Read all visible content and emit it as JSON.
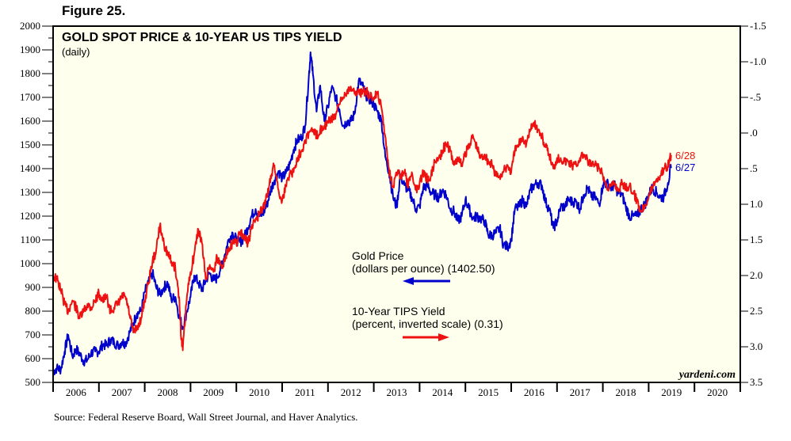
{
  "figure_label": "Figure 25.",
  "source_note": "Source: Federal Reserve Board, Wall Street Journal, and Haver Analytics.",
  "watermark": "yardeni.com",
  "colors": {
    "gold": "#0000cc",
    "tips": "#ee1111",
    "plot_bg": "#ffffee",
    "frame": "#000000"
  },
  "chart_data": {
    "type": "line",
    "title": "GOLD SPOT PRICE & 10-YEAR US TIPS YIELD",
    "subtitle": "(daily)",
    "xlabel": "",
    "x_tick_labels": [
      "2006",
      "2007",
      "2008",
      "2009",
      "2010",
      "2011",
      "2012",
      "2013",
      "2014",
      "2015",
      "2016",
      "2017",
      "2018",
      "2019",
      "2020"
    ],
    "xlim": [
      2006.0,
      2021.0
    ],
    "left_axis": {
      "label": "Gold Price (dollars per ounce)",
      "ylim": [
        500,
        2000
      ],
      "tick_labels": [
        "500",
        "600",
        "700",
        "800",
        "900",
        "1000",
        "1100",
        "1200",
        "1300",
        "1400",
        "1500",
        "1600",
        "1700",
        "1800",
        "1900",
        "2000"
      ],
      "tick_values": [
        500,
        600,
        700,
        800,
        900,
        1000,
        1100,
        1200,
        1300,
        1400,
        1500,
        1600,
        1700,
        1800,
        1900,
        2000
      ]
    },
    "right_axis": {
      "label": "10-Year TIPS Yield (percent, inverted scale)",
      "ylim": [
        3.5,
        -1.5
      ],
      "inverted": true,
      "tick_labels": [
        "-1.5",
        "-1.0",
        "-.5",
        ".0",
        ".5",
        "1.0",
        "1.5",
        "2.0",
        "2.5",
        "3.0",
        "3.5"
      ],
      "tick_values": [
        -1.5,
        -1.0,
        -0.5,
        0.0,
        0.5,
        1.0,
        1.5,
        2.0,
        2.5,
        3.0,
        3.5
      ]
    },
    "legend": [
      {
        "name": "Gold Price",
        "detail": "(dollars per ounce) (1402.50)",
        "axis": "left",
        "arrow": "left"
      },
      {
        "name": "10-Year TIPS Yield",
        "detail": "(percent, inverted scale) (0.31)",
        "axis": "right",
        "arrow": "right"
      }
    ],
    "legend_placement": "center",
    "end_labels": {
      "gold": "6/27",
      "tips": "6/28"
    },
    "series": [
      {
        "name": "Gold Price",
        "axis": "left",
        "x": [
          2006.0,
          2006.08,
          2006.17,
          2006.25,
          2006.33,
          2006.42,
          2006.5,
          2006.58,
          2006.67,
          2006.75,
          2006.83,
          2006.92,
          2007.0,
          2007.08,
          2007.17,
          2007.25,
          2007.33,
          2007.42,
          2007.5,
          2007.58,
          2007.67,
          2007.75,
          2007.83,
          2007.92,
          2008.0,
          2008.08,
          2008.17,
          2008.25,
          2008.33,
          2008.42,
          2008.5,
          2008.58,
          2008.67,
          2008.75,
          2008.83,
          2008.92,
          2009.0,
          2009.08,
          2009.17,
          2009.25,
          2009.33,
          2009.42,
          2009.5,
          2009.58,
          2009.67,
          2009.75,
          2009.83,
          2009.92,
          2010.0,
          2010.08,
          2010.17,
          2010.25,
          2010.33,
          2010.42,
          2010.5,
          2010.58,
          2010.67,
          2010.75,
          2010.83,
          2010.92,
          2011.0,
          2011.08,
          2011.17,
          2011.25,
          2011.33,
          2011.42,
          2011.5,
          2011.58,
          2011.62,
          2011.67,
          2011.75,
          2011.83,
          2011.92,
          2012.0,
          2012.08,
          2012.17,
          2012.25,
          2012.33,
          2012.42,
          2012.5,
          2012.58,
          2012.67,
          2012.75,
          2012.83,
          2012.92,
          2013.0,
          2013.08,
          2013.17,
          2013.25,
          2013.33,
          2013.42,
          2013.5,
          2013.58,
          2013.67,
          2013.75,
          2013.83,
          2013.92,
          2014.0,
          2014.08,
          2014.17,
          2014.25,
          2014.33,
          2014.42,
          2014.5,
          2014.58,
          2014.67,
          2014.75,
          2014.83,
          2014.92,
          2015.0,
          2015.08,
          2015.17,
          2015.25,
          2015.33,
          2015.42,
          2015.5,
          2015.58,
          2015.67,
          2015.75,
          2015.83,
          2015.92,
          2016.0,
          2016.08,
          2016.17,
          2016.25,
          2016.33,
          2016.42,
          2016.5,
          2016.58,
          2016.67,
          2016.75,
          2016.83,
          2016.92,
          2017.0,
          2017.08,
          2017.17,
          2017.25,
          2017.33,
          2017.42,
          2017.5,
          2017.58,
          2017.67,
          2017.75,
          2017.83,
          2017.92,
          2018.0,
          2018.08,
          2018.17,
          2018.25,
          2018.33,
          2018.42,
          2018.5,
          2018.58,
          2018.67,
          2018.75,
          2018.83,
          2018.92,
          2019.0,
          2019.08,
          2019.17,
          2019.25,
          2019.33,
          2019.42,
          2019.49
        ],
        "values": [
          545,
          560,
          555,
          630,
          700,
          610,
          640,
          620,
          590,
          595,
          625,
          630,
          630,
          660,
          655,
          680,
          670,
          655,
          670,
          665,
          710,
          750,
          790,
          800,
          880,
          920,
          960,
          900,
          870,
          900,
          920,
          850,
          860,
          780,
          730,
          800,
          860,
          950,
          920,
          890,
          930,
          960,
          930,
          940,
          990,
          1040,
          1100,
          1130,
          1100,
          1090,
          1110,
          1150,
          1200,
          1230,
          1200,
          1210,
          1250,
          1310,
          1350,
          1390,
          1360,
          1380,
          1420,
          1480,
          1520,
          1530,
          1580,
          1780,
          1890,
          1800,
          1640,
          1750,
          1600,
          1660,
          1740,
          1700,
          1650,
          1580,
          1600,
          1600,
          1630,
          1770,
          1750,
          1710,
          1690,
          1670,
          1640,
          1600,
          1450,
          1390,
          1280,
          1240,
          1370,
          1330,
          1310,
          1280,
          1230,
          1240,
          1320,
          1330,
          1300,
          1290,
          1280,
          1310,
          1290,
          1230,
          1220,
          1180,
          1200,
          1270,
          1230,
          1190,
          1200,
          1190,
          1180,
          1120,
          1120,
          1130,
          1150,
          1080,
          1070,
          1100,
          1230,
          1240,
          1270,
          1240,
          1310,
          1330,
          1340,
          1330,
          1260,
          1230,
          1150,
          1180,
          1240,
          1240,
          1270,
          1260,
          1260,
          1230,
          1290,
          1320,
          1280,
          1280,
          1250,
          1330,
          1340,
          1320,
          1330,
          1300,
          1290,
          1240,
          1200,
          1200,
          1200,
          1230,
          1250,
          1290,
          1320,
          1300,
          1280,
          1280,
          1340,
          1402.5
        ]
      },
      {
        "name": "10-Year TIPS Yield",
        "axis": "right",
        "x": [
          2006.0,
          2006.08,
          2006.17,
          2006.25,
          2006.33,
          2006.42,
          2006.5,
          2006.58,
          2006.67,
          2006.75,
          2006.83,
          2006.92,
          2007.0,
          2007.08,
          2007.17,
          2007.25,
          2007.33,
          2007.42,
          2007.5,
          2007.58,
          2007.67,
          2007.75,
          2007.83,
          2007.92,
          2008.0,
          2008.08,
          2008.17,
          2008.25,
          2008.33,
          2008.42,
          2008.5,
          2008.58,
          2008.67,
          2008.75,
          2008.8,
          2008.83,
          2008.92,
          2009.0,
          2009.08,
          2009.17,
          2009.25,
          2009.33,
          2009.42,
          2009.5,
          2009.58,
          2009.67,
          2009.75,
          2009.83,
          2009.92,
          2010.0,
          2010.08,
          2010.17,
          2010.25,
          2010.33,
          2010.42,
          2010.5,
          2010.58,
          2010.67,
          2010.75,
          2010.83,
          2010.92,
          2011.0,
          2011.08,
          2011.17,
          2011.25,
          2011.33,
          2011.42,
          2011.5,
          2011.58,
          2011.67,
          2011.75,
          2011.83,
          2011.92,
          2012.0,
          2012.08,
          2012.17,
          2012.25,
          2012.33,
          2012.42,
          2012.5,
          2012.58,
          2012.67,
          2012.75,
          2012.83,
          2012.92,
          2013.0,
          2013.08,
          2013.17,
          2013.25,
          2013.33,
          2013.42,
          2013.5,
          2013.58,
          2013.67,
          2013.75,
          2013.83,
          2013.92,
          2014.0,
          2014.08,
          2014.17,
          2014.25,
          2014.33,
          2014.42,
          2014.5,
          2014.58,
          2014.67,
          2014.75,
          2014.83,
          2014.92,
          2015.0,
          2015.08,
          2015.17,
          2015.25,
          2015.33,
          2015.42,
          2015.5,
          2015.58,
          2015.67,
          2015.75,
          2015.83,
          2015.92,
          2016.0,
          2016.08,
          2016.17,
          2016.25,
          2016.33,
          2016.42,
          2016.5,
          2016.58,
          2016.67,
          2016.75,
          2016.83,
          2016.92,
          2017.0,
          2017.08,
          2017.17,
          2017.25,
          2017.33,
          2017.42,
          2017.5,
          2017.58,
          2017.67,
          2017.75,
          2017.83,
          2017.92,
          2018.0,
          2018.08,
          2018.17,
          2018.25,
          2018.33,
          2018.42,
          2018.5,
          2018.58,
          2018.67,
          2018.75,
          2018.83,
          2018.92,
          2019.0,
          2019.08,
          2019.17,
          2019.25,
          2019.33,
          2019.42,
          2019.49
        ],
        "values": [
          2.0,
          2.05,
          2.2,
          2.4,
          2.5,
          2.35,
          2.45,
          2.6,
          2.5,
          2.4,
          2.45,
          2.35,
          2.25,
          2.35,
          2.3,
          2.5,
          2.45,
          2.4,
          2.3,
          2.3,
          2.55,
          2.8,
          2.75,
          2.6,
          2.35,
          2.1,
          1.8,
          1.65,
          1.3,
          1.55,
          1.7,
          1.8,
          1.9,
          2.3,
          2.9,
          3.05,
          2.3,
          1.95,
          1.7,
          1.35,
          1.55,
          2.05,
          1.85,
          1.95,
          1.75,
          1.85,
          1.8,
          1.6,
          1.55,
          1.55,
          1.4,
          1.45,
          1.55,
          1.35,
          1.2,
          1.15,
          1.05,
          0.9,
          0.6,
          0.45,
          0.8,
          0.95,
          0.75,
          0.55,
          0.55,
          0.35,
          0.25,
          0.1,
          0.0,
          -0.05,
          0.05,
          -0.05,
          -0.1,
          -0.15,
          -0.2,
          -0.25,
          -0.4,
          -0.5,
          -0.6,
          -0.65,
          -0.55,
          -0.6,
          -0.55,
          -0.6,
          -0.5,
          -0.5,
          -0.55,
          -0.35,
          0.05,
          0.5,
          0.75,
          0.55,
          0.6,
          0.55,
          0.75,
          0.55,
          0.8,
          0.7,
          0.55,
          0.65,
          0.6,
          0.4,
          0.35,
          0.25,
          0.15,
          0.25,
          0.45,
          0.35,
          0.45,
          0.3,
          0.15,
          0.05,
          0.2,
          0.35,
          0.3,
          0.4,
          0.45,
          0.6,
          0.6,
          0.55,
          0.45,
          0.55,
          0.25,
          0.15,
          0.05,
          0.15,
          -0.05,
          -0.15,
          -0.05,
          0.05,
          0.2,
          0.3,
          0.5,
          0.35,
          0.35,
          0.4,
          0.4,
          0.45,
          0.45,
          0.35,
          0.3,
          0.4,
          0.45,
          0.45,
          0.5,
          0.6,
          0.75,
          0.75,
          0.7,
          0.8,
          0.7,
          0.75,
          0.75,
          0.85,
          0.95,
          1.1,
          1.0,
          0.9,
          0.75,
          0.65,
          0.6,
          0.5,
          0.45,
          0.31
        ]
      }
    ]
  }
}
